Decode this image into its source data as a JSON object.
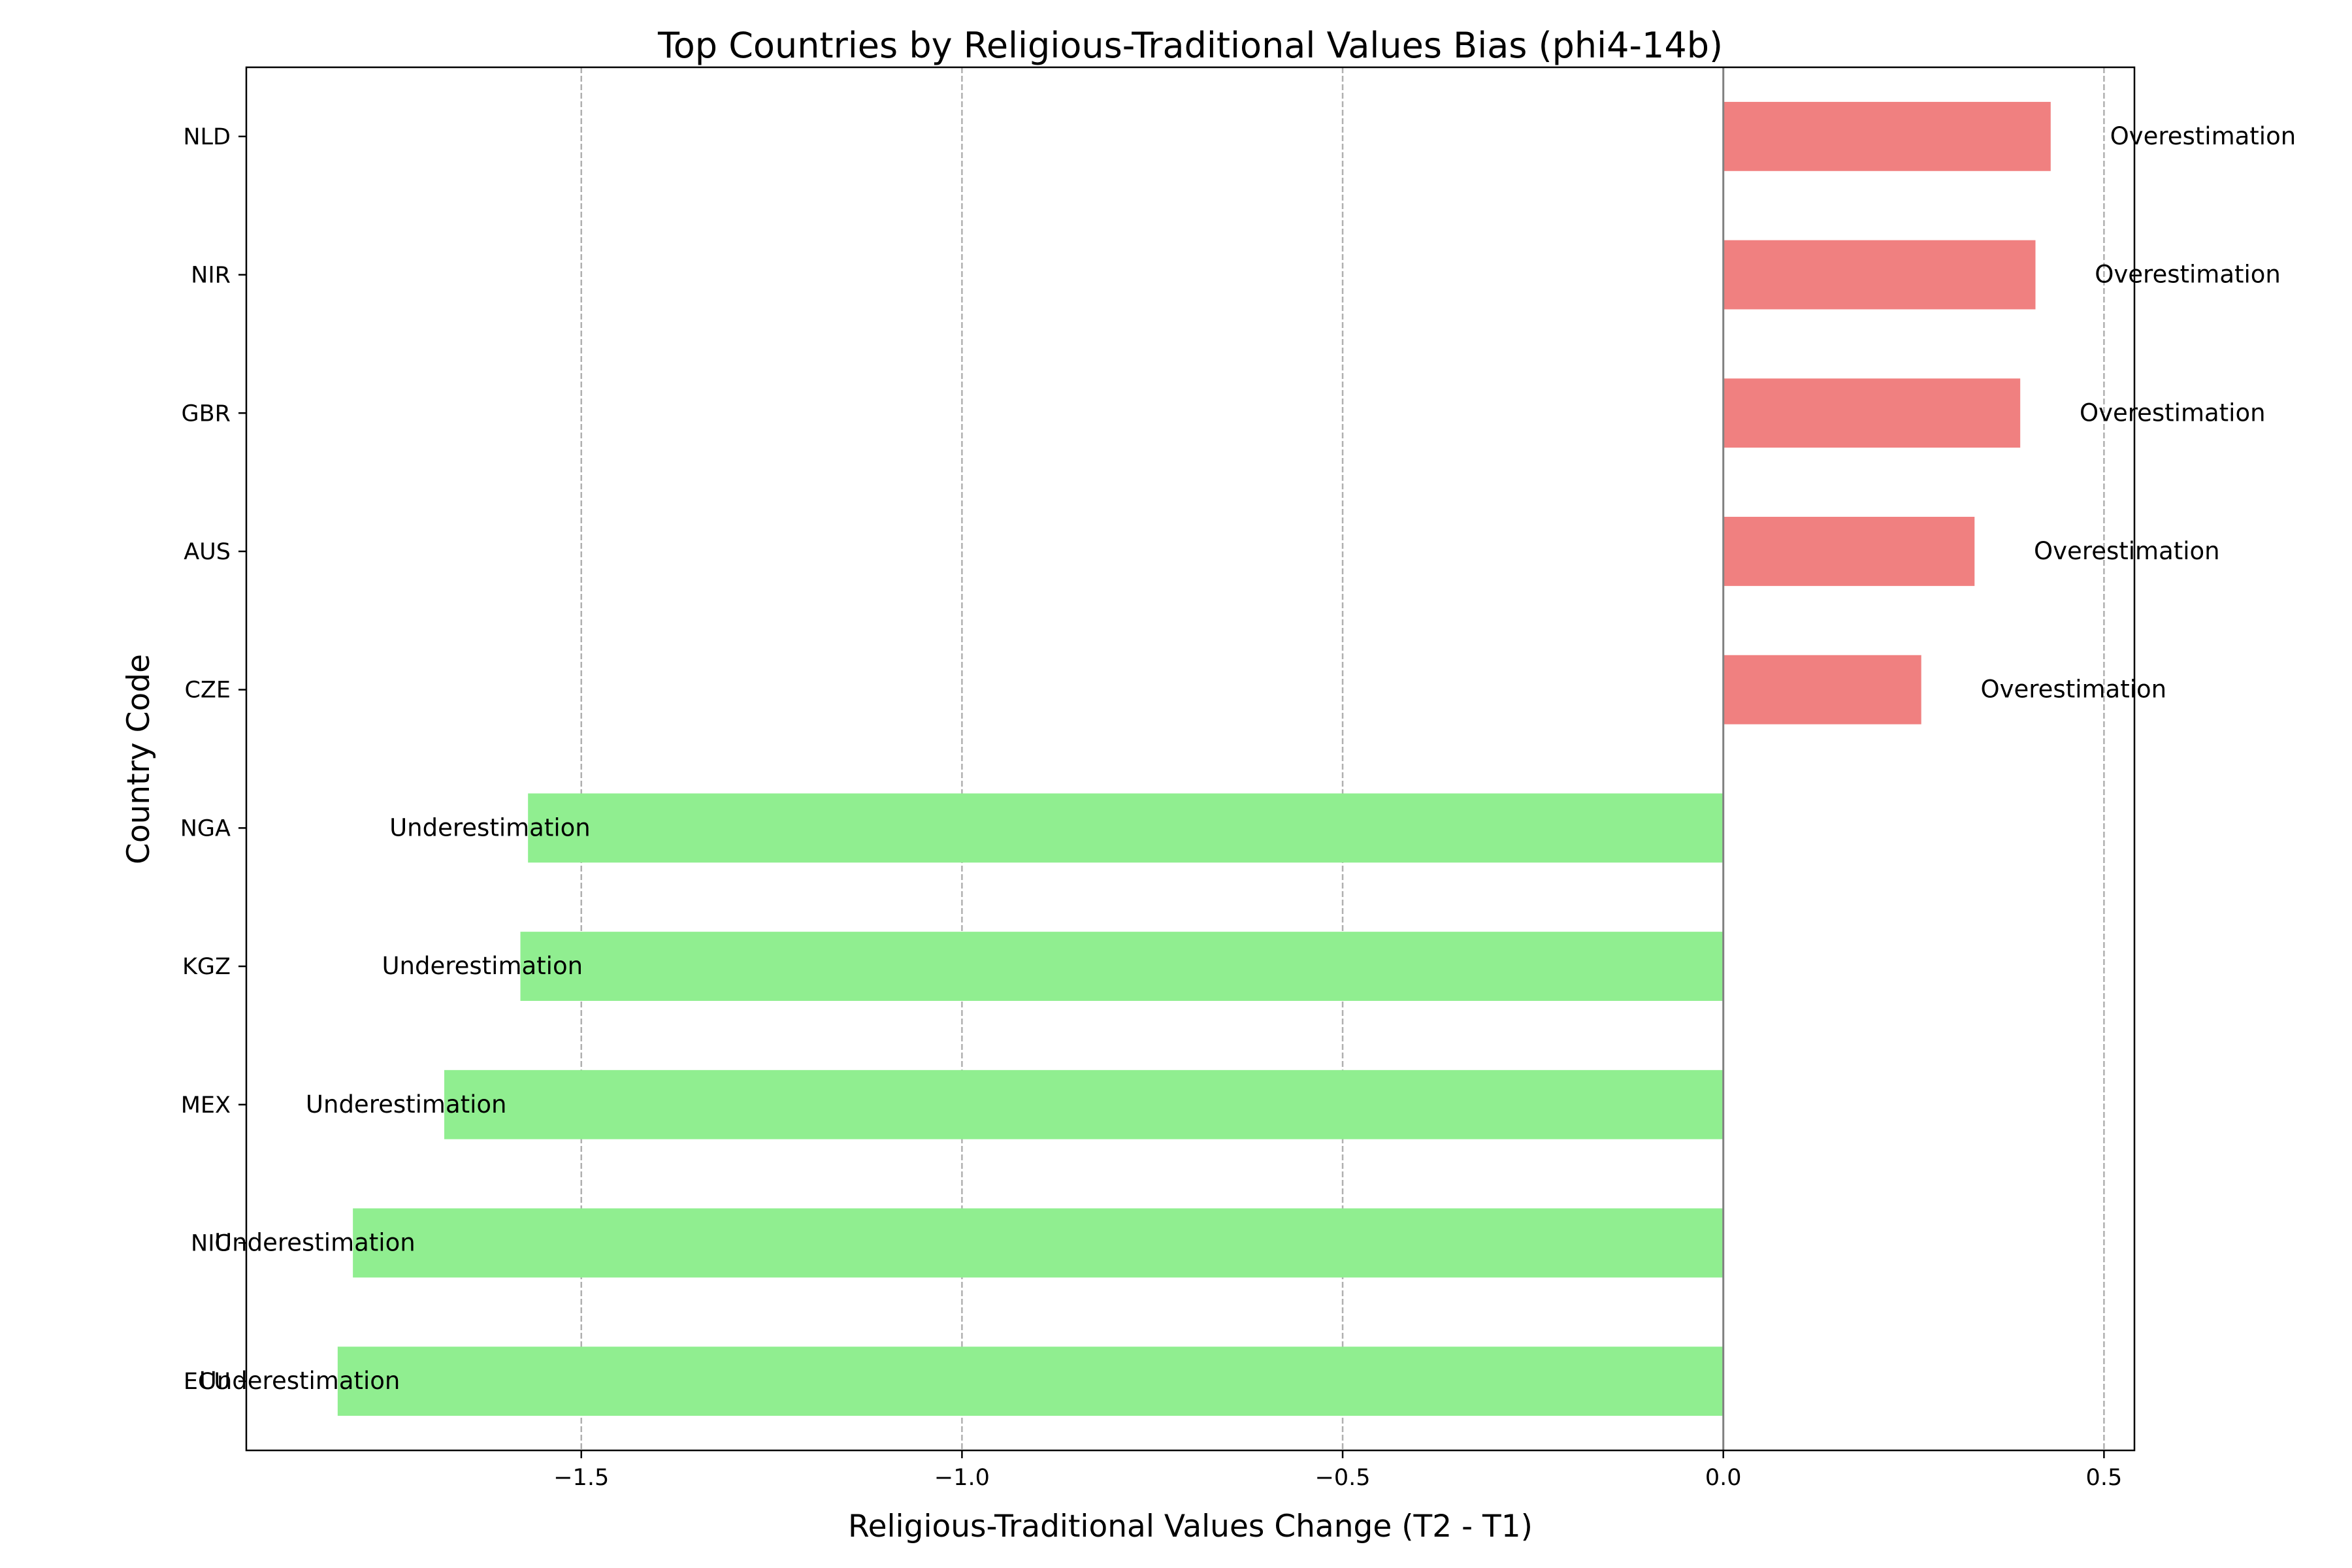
{
  "chart_data": {
    "type": "bar",
    "orientation": "horizontal",
    "title": "Top Countries by Religious-Traditional Values Bias (phi4-14b)",
    "xlabel": "Religious-Traditional Values Change (T2 - T1)",
    "ylabel": "Country Code",
    "xlim": [
      -1.94,
      0.54
    ],
    "xticks": [
      -1.5,
      -1.0,
      -0.5,
      0.0,
      0.5
    ],
    "xtick_labels": [
      "−1.5",
      "−1.0",
      "−0.5",
      "0.0",
      "0.5"
    ],
    "grid": "x-dashed",
    "zero_line": true,
    "categories": [
      "NLD",
      "NIR",
      "GBR",
      "AUS",
      "CZE",
      "NGA",
      "KGZ",
      "MEX",
      "NIC",
      "ECU"
    ],
    "values": [
      0.43,
      0.41,
      0.39,
      0.33,
      0.26,
      -1.57,
      -1.58,
      -1.68,
      -1.8,
      -1.82
    ],
    "labels": [
      "Overestimation",
      "Overestimation",
      "Overestimation",
      "Overestimation",
      "Overestimation",
      "Underestimation",
      "Underestimation",
      "Underestimation",
      "Underestimation",
      "Underestimation"
    ],
    "colors": {
      "positive": "#f08080",
      "negative": "#90ee90",
      "grid": "#b0b0b0",
      "zero_line": "#808080"
    }
  }
}
